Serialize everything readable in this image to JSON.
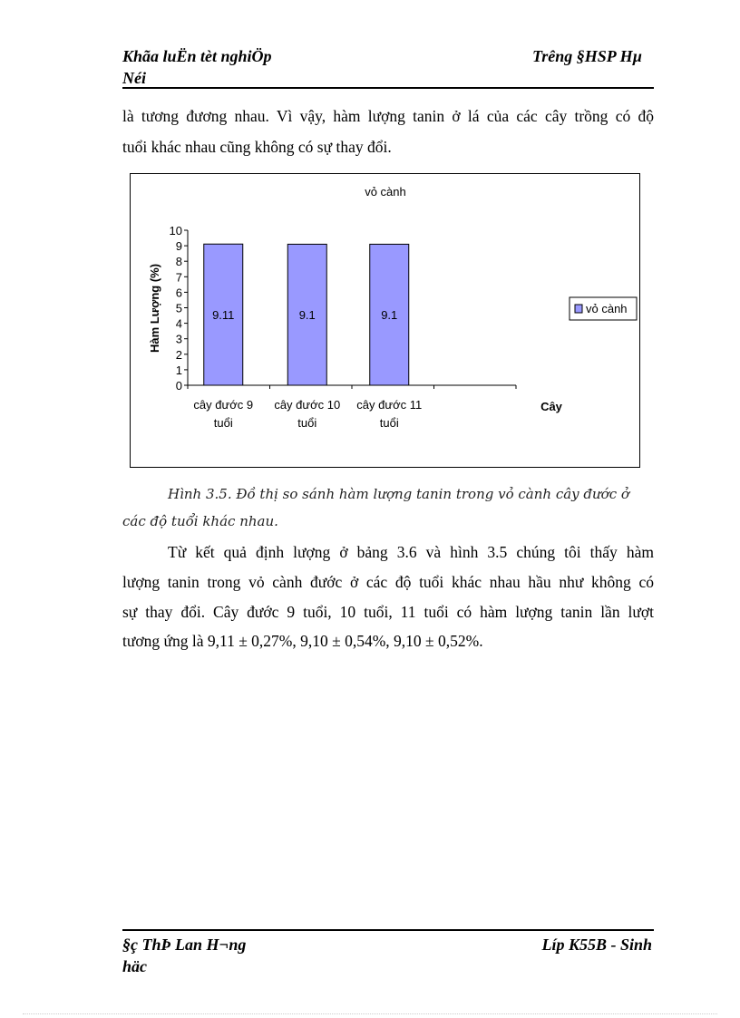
{
  "header": {
    "left_line1": "Khãa luËn tèt nghiÖp",
    "left_line2": "Néi",
    "right": "Tr­êng  §HSP Hµ"
  },
  "paragraph1": [
    "là tương đương nhau. Vì vậy, hàm lượng tanin ở lá của các cây trồng có độ",
    "tuổi khác nhau cũng không có sự thay đổi."
  ],
  "chart_data": {
    "type": "bar",
    "title": "vỏ cành",
    "categories": [
      [
        "cây đước 9",
        "tuổi"
      ],
      [
        "cây đước 10",
        "tuổi"
      ],
      [
        "cây đước 11",
        "tuổi"
      ]
    ],
    "series": [
      {
        "name": "vỏ cành",
        "values": [
          9.11,
          9.1,
          9.1
        ],
        "color": "#9999ff"
      }
    ],
    "data_labels": [
      "9.11",
      "9.1",
      "9.1"
    ],
    "xlabel": "Cây",
    "ylabel": "Hàm Lượng (%)",
    "ylim": [
      0,
      10
    ],
    "yticks": [
      "0",
      "1",
      "2",
      "3",
      "4",
      "5",
      "6",
      "7",
      "8",
      "9",
      "10"
    ],
    "grid": false,
    "legend": "right"
  },
  "caption": [
    "Hình 3.5. Đồ thị so sánh hàm lượng tanin trong vỏ cành cây đước  ở",
    "các độ tuổi khác nhau."
  ],
  "paragraph2": [
    "Từ kết quả định lượng ở bảng 3.6 và hình 3.5  chúng tôi thấy hàm",
    "lượng tanin trong vỏ cành đước ở các độ tuổi khác nhau hầu như không có",
    "sự thay đổi. Cây đước 9 tuổi, 10 tuổi, 11 tuổi có hàm lượng tanin lần lượt",
    "tương ứng là  9,11 ± 0,27%,  9,10 ± 0,54%, 9,10 ± 0,52%."
  ],
  "footer": {
    "left_line1": "§ç ThÞ Lan H­¬ng",
    "left_line2": "häc",
    "right": "Líp  K55B  -  Sinh"
  }
}
